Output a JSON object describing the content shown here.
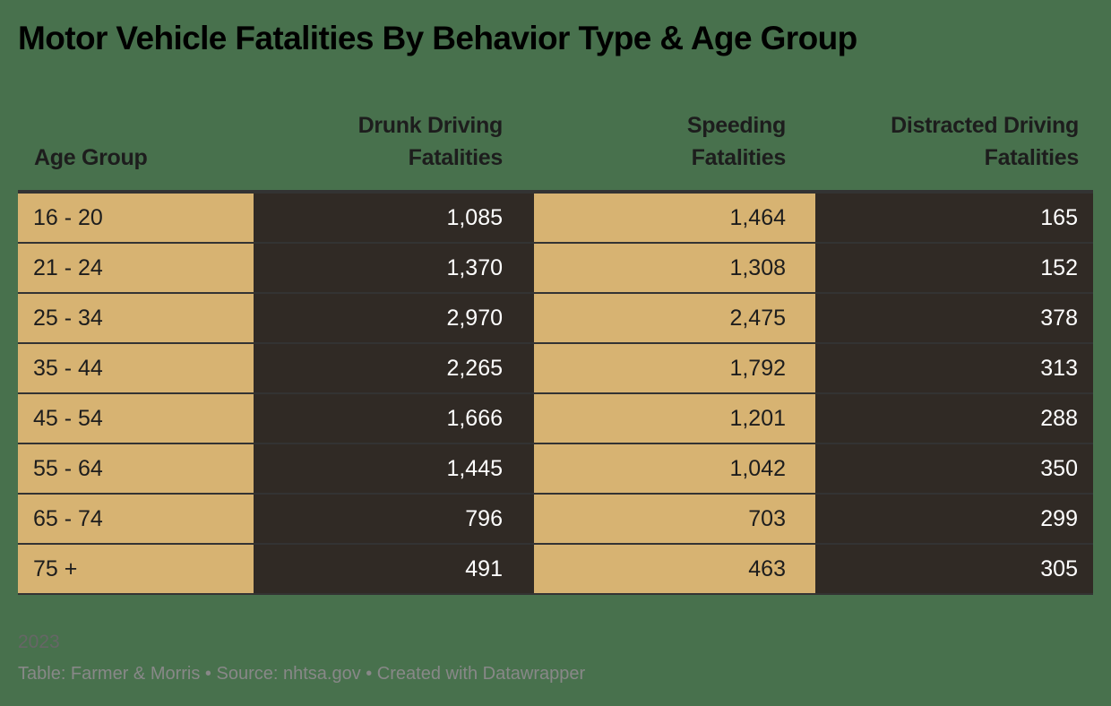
{
  "title": "Motor Vehicle Fatalities By Behavior Type & Age Group",
  "columns": [
    {
      "line1": "",
      "line2": "Age Group"
    },
    {
      "line1": "Drunk Driving",
      "line2": "Fatalities"
    },
    {
      "line1": "Speeding",
      "line2": "Fatalities"
    },
    {
      "line1": "Distracted Driving",
      "line2": "Fatalities"
    }
  ],
  "rows": [
    [
      "16 - 20",
      "1,085",
      "1,464",
      "165"
    ],
    [
      "21 - 24",
      "1,370",
      "1,308",
      "152"
    ],
    [
      "25 - 34",
      "2,970",
      "2,475",
      "378"
    ],
    [
      "35 - 44",
      "2,265",
      "1,792",
      "313"
    ],
    [
      "45 - 54",
      "1,666",
      "1,201",
      "288"
    ],
    [
      "55 - 64",
      "1,445",
      "1,042",
      "350"
    ],
    [
      "65 - 74",
      "796",
      "703",
      "299"
    ],
    [
      "75 +",
      "491",
      "463",
      "305"
    ]
  ],
  "notes": "2023",
  "footer": "Table: Farmer & Morris • Source: nhtsa.gov • Created with Datawrapper",
  "colors": {
    "background": "#48714d",
    "light_column": "#d7b372",
    "dark_column": "#302a25",
    "border": "#333333"
  },
  "chart_data": {
    "type": "table",
    "title": "Motor Vehicle Fatalities By Behavior Type & Age Group",
    "categories": [
      "16 - 20",
      "21 - 24",
      "25 - 34",
      "35 - 44",
      "45 - 54",
      "55 - 64",
      "65 - 74",
      "75 +"
    ],
    "series": [
      {
        "name": "Drunk Driving Fatalities",
        "values": [
          1085,
          1370,
          2970,
          2265,
          1666,
          1445,
          796,
          491
        ]
      },
      {
        "name": "Speeding Fatalities",
        "values": [
          1464,
          1308,
          2475,
          1792,
          1201,
          1042,
          703,
          463
        ]
      },
      {
        "name": "Distracted Driving Fatalities",
        "values": [
          165,
          152,
          378,
          313,
          288,
          350,
          299,
          305
        ]
      }
    ],
    "xlabel": "Age Group",
    "notes": "2023",
    "source": "nhtsa.gov"
  }
}
